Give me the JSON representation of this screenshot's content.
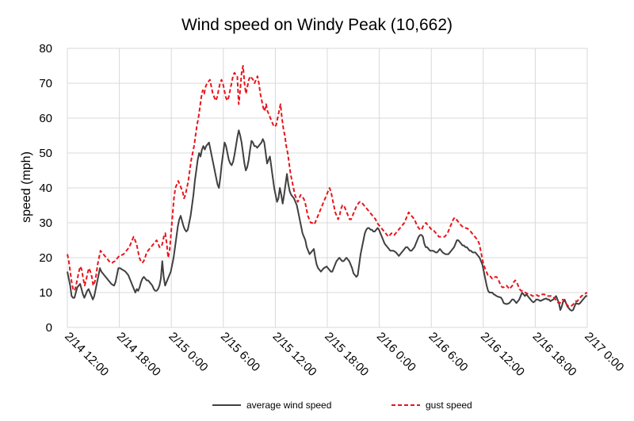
{
  "chart_data": {
    "type": "line",
    "title": "Wind speed on Windy Peak (10,662)",
    "xlabel": "",
    "ylabel": "speed (mph)",
    "ylim": [
      0,
      80
    ],
    "yticks": [
      "0",
      "10",
      "20",
      "30",
      "40",
      "50",
      "60",
      "70",
      "80"
    ],
    "xlim": [
      "2/14 12:00",
      "2/17 0:00"
    ],
    "xticks": [
      "2/14 12:00",
      "2/14 18:00",
      "2/15 0:00",
      "2/15 6:00",
      "2/15 12:00",
      "2/15 18:00",
      "2/16 0:00",
      "2/16 6:00",
      "2/16 12:00",
      "2/16 18:00",
      "2/17 0:00"
    ],
    "x_step_hours": 0.25,
    "grid": true,
    "legend": "bottom",
    "colors": {
      "average": "#404040",
      "gust": "#e8141b",
      "grid": "#d9d9d9"
    },
    "series": [
      {
        "name": "average wind speed",
        "style": "solid",
        "values": [
          16,
          14,
          12,
          9,
          8.5,
          8.5,
          10,
          11.5,
          12,
          12.5,
          11,
          9.5,
          8.5,
          9.5,
          10.5,
          11,
          10,
          9,
          8,
          9,
          11,
          13,
          15,
          17,
          16,
          15.5,
          15,
          14.5,
          14,
          13.5,
          13,
          12.5,
          12.2,
          12,
          13,
          15,
          17,
          17,
          16.8,
          16.5,
          16.3,
          16,
          15.5,
          15,
          14,
          13,
          12,
          11,
          10,
          11,
          10.5,
          11.5,
          13,
          14,
          14.5,
          14,
          13.5,
          13.5,
          13,
          12.5,
          12,
          11,
          10.5,
          10.5,
          11,
          12,
          14,
          19,
          14.5,
          12,
          13,
          14,
          15,
          16,
          18,
          20,
          23,
          26,
          29,
          31,
          32,
          30.5,
          29,
          28,
          27.5,
          28,
          30,
          32,
          35,
          38,
          42,
          45,
          48,
          50,
          49,
          51,
          52,
          51,
          52,
          52.5,
          53,
          51,
          49,
          47,
          45,
          43,
          41,
          40,
          43,
          47,
          50,
          53,
          52,
          50,
          48,
          47,
          46.5,
          47.5,
          49.5,
          52,
          54.5,
          56.5,
          55,
          53,
          50,
          47,
          45,
          46,
          48,
          51,
          53.5,
          53,
          52,
          52,
          51.5,
          52,
          52.5,
          53,
          54,
          53,
          50,
          47,
          48,
          49,
          46,
          43,
          40,
          38,
          36,
          37,
          40,
          38,
          35.5,
          38,
          41,
          44,
          41,
          39,
          38,
          37.5,
          37,
          36,
          35,
          33,
          31,
          29,
          27,
          26,
          25,
          23,
          22,
          21,
          21.5,
          22,
          22.5,
          20,
          18,
          17,
          16.5,
          16,
          16.5,
          17,
          17.2,
          17.5,
          17,
          16.5,
          16,
          16,
          17,
          18,
          19,
          19.5,
          20,
          19.5,
          19,
          19,
          19.5,
          20,
          19.5,
          19,
          18,
          17,
          15.5,
          15,
          14.5,
          15,
          18,
          21,
          23,
          25,
          27,
          28,
          28.5,
          28.5,
          28,
          28,
          27.5,
          27.5,
          28,
          28.5,
          28,
          27,
          26,
          25,
          24,
          23.5,
          23,
          22.5,
          22,
          22,
          22,
          21.8,
          21.5,
          21,
          20.5,
          21,
          21.5,
          22,
          22.5,
          23,
          23,
          22.5,
          22,
          22,
          22.5,
          23,
          24,
          25,
          26,
          26.5,
          26.5,
          26,
          24,
          23,
          23,
          22.5,
          22,
          22,
          22,
          21.8,
          21.5,
          21.5,
          22,
          22.5,
          22,
          21.5,
          21.2,
          21,
          21,
          21,
          21.5,
          22,
          22.5,
          23,
          24,
          25,
          25,
          24.5,
          24,
          23.5,
          23.5,
          23,
          23,
          22.5,
          22,
          22,
          21.5,
          21.5,
          21.5,
          21,
          20.5,
          20,
          19,
          18,
          16,
          14,
          12,
          10.5,
          10,
          10,
          10,
          9.5,
          9.3,
          9,
          8.8,
          8.7,
          8.6,
          8,
          7,
          6.8,
          6.7,
          6.8,
          7,
          7.5,
          8,
          8,
          7.5,
          7,
          7.5,
          8,
          9,
          10,
          9.5,
          9,
          9.5,
          9,
          8.5,
          8,
          7.5,
          7.2,
          7.5,
          8,
          8,
          7.8,
          7.6,
          7.8,
          8,
          8.2,
          8.3,
          8,
          8,
          7.5,
          7.8,
          8,
          8.5,
          9,
          8,
          7,
          5,
          6,
          7.5,
          8,
          7,
          6,
          5.5,
          5,
          4.8,
          5,
          6,
          7,
          6.8,
          6.7,
          7,
          7.5,
          8,
          8.5,
          9,
          9
        ],
        "label_points": {}
      },
      {
        "name": "gust speed",
        "style": "dashed",
        "values": [
          21,
          19,
          16,
          13,
          11,
          10.5,
          12,
          14,
          16,
          17.5,
          16.5,
          14,
          12,
          13.5,
          15.5,
          17,
          16,
          14.5,
          12,
          13,
          15,
          18,
          20,
          22,
          21.5,
          21,
          20.5,
          20,
          19.5,
          19,
          18.5,
          18.5,
          18.8,
          19,
          19.5,
          20,
          20.5,
          20.5,
          20.8,
          21,
          21.5,
          22,
          22.5,
          23,
          24,
          25,
          26,
          25,
          24,
          22,
          20,
          19,
          18.5,
          19,
          20,
          21.5,
          22,
          22.5,
          23,
          23.5,
          24,
          24.5,
          25,
          24,
          23,
          23,
          24,
          26,
          27,
          24,
          20,
          22,
          27,
          32,
          37,
          40,
          41,
          42,
          41,
          40,
          39,
          37,
          38,
          40,
          42,
          45,
          48,
          50,
          52,
          55,
          58,
          60,
          63,
          66,
          68,
          67,
          69,
          70,
          70.5,
          71,
          69,
          67,
          66,
          65,
          66,
          68,
          70,
          71,
          70,
          68,
          66,
          65,
          66,
          68,
          70,
          72,
          73,
          72.5,
          72,
          64,
          68,
          73,
          75,
          70,
          67,
          69,
          71,
          72,
          71.5,
          71,
          70,
          71,
          72,
          70,
          67,
          65,
          63,
          62,
          64,
          62,
          61,
          60,
          59,
          58,
          57.5,
          58,
          60,
          62,
          64,
          60,
          57,
          55,
          52,
          50,
          47,
          44,
          42,
          40,
          38,
          37,
          36,
          37,
          38,
          37.5,
          37,
          36,
          34,
          32,
          31,
          30,
          30,
          29.5,
          30,
          31,
          32,
          33,
          34,
          35,
          36,
          37,
          38,
          39,
          40,
          39,
          37,
          35,
          33,
          32,
          31,
          32,
          34,
          35,
          35,
          34,
          33,
          32,
          31,
          31,
          32,
          33,
          34,
          35,
          35.5,
          36,
          36,
          35.5,
          35,
          34.5,
          34,
          33.5,
          33,
          32.5,
          32,
          31.5,
          31,
          30,
          29.5,
          29,
          28.5,
          28,
          27.5,
          27,
          26.5,
          26,
          26.5,
          27,
          27,
          26.5,
          27,
          27.5,
          28,
          28.5,
          29,
          29.5,
          30,
          31,
          32,
          33,
          32.5,
          32,
          31.5,
          31,
          30,
          29,
          28.5,
          28,
          28,
          29,
          29.5,
          30,
          29.5,
          29,
          28.5,
          28,
          28,
          27.5,
          27,
          26.5,
          26,
          26,
          26,
          26,
          26,
          26.5,
          27,
          28,
          29,
          30,
          31,
          31.5,
          31,
          30.5,
          30,
          29.5,
          29,
          28.8,
          28.5,
          28.5,
          28.3,
          28,
          27.5,
          27,
          26.5,
          26,
          25.5,
          25,
          24,
          22,
          20,
          18,
          17,
          16,
          15,
          15,
          14.5,
          14,
          14,
          14.5,
          14.5,
          14,
          13,
          12,
          11.5,
          11.5,
          12,
          12,
          11.5,
          11,
          11.5,
          12,
          13,
          13.5,
          13,
          12,
          11,
          10.5,
          10.5,
          10.3,
          10,
          9.8,
          9.5,
          9.5,
          9.3,
          9,
          9,
          9.2,
          9.3,
          9,
          9,
          9.3,
          9.5,
          9.5,
          9.3,
          9,
          9,
          9,
          9,
          8.8,
          8.5,
          8,
          7.5,
          7,
          7,
          7.5,
          8,
          7.5,
          7,
          6.5,
          6,
          6,
          6.2,
          6.5,
          7,
          7.5,
          7.5,
          8,
          8.5,
          9,
          9.2,
          9.5,
          9.8,
          10
        ],
        "label_points": {}
      }
    ]
  }
}
